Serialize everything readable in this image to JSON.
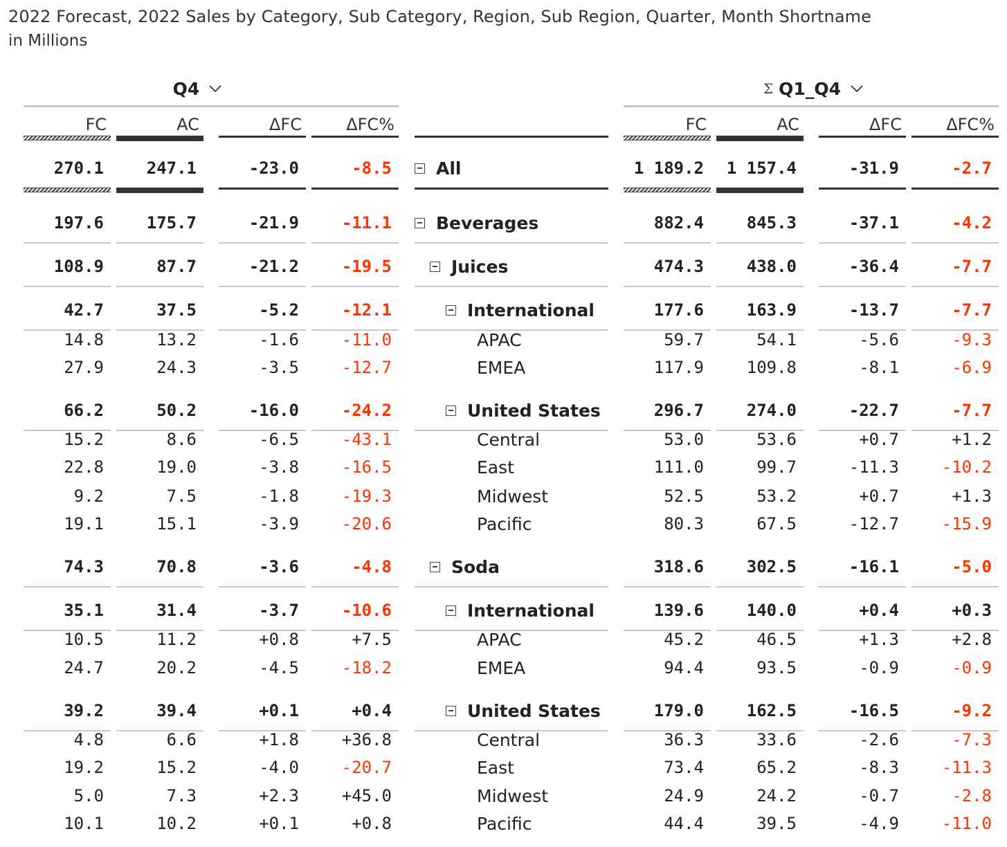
{
  "title": "2022 Forecast, 2022 Sales by Category, Sub Category, Region, Sub Region, Quarter, Month Shortname",
  "subtitle": "in Millions",
  "groups": {
    "left": {
      "label": "Q4",
      "icon": "chevron-down-icon"
    },
    "right": {
      "label": "Q1_Q4",
      "sigma": "Σ",
      "icon": "chevron-down-icon"
    }
  },
  "column_headers": [
    "FC",
    "AC",
    "ΔFC",
    "ΔFC%"
  ],
  "colors": {
    "negative": "#ff3300",
    "text": "#222222",
    "rule": "#c8c8c8",
    "dark_rule": "#333333"
  },
  "rows": [
    {
      "label": "All",
      "level": 0,
      "toggle": "collapse",
      "q4": [
        "270.1",
        "247.1",
        "-23.0",
        "-8.5"
      ],
      "ytd": [
        "1 189.2",
        "1 157.4",
        "-31.9",
        "-2.7"
      ]
    },
    {
      "label": "Beverages",
      "level": 0,
      "toggle": "collapse",
      "q4": [
        "197.6",
        "175.7",
        "-21.9",
        "-11.1"
      ],
      "ytd": [
        "882.4",
        "845.3",
        "-37.1",
        "-4.2"
      ]
    },
    {
      "label": "Juices",
      "level": 1,
      "toggle": "collapse",
      "q4": [
        "108.9",
        "87.7",
        "-21.2",
        "-19.5"
      ],
      "ytd": [
        "474.3",
        "438.0",
        "-36.4",
        "-7.7"
      ]
    },
    {
      "label": "International",
      "level": 2,
      "toggle": "collapse",
      "q4": [
        "42.7",
        "37.5",
        "-5.2",
        "-12.1"
      ],
      "ytd": [
        "177.6",
        "163.9",
        "-13.7",
        "-7.7"
      ]
    },
    {
      "label": "APAC",
      "level": 3,
      "q4": [
        "14.8",
        "13.2",
        "-1.6",
        "-11.0"
      ],
      "ytd": [
        "59.7",
        "54.1",
        "-5.6",
        "-9.3"
      ]
    },
    {
      "label": "EMEA",
      "level": 3,
      "q4": [
        "27.9",
        "24.3",
        "-3.5",
        "-12.7"
      ],
      "ytd": [
        "117.9",
        "109.8",
        "-8.1",
        "-6.9"
      ]
    },
    {
      "label": "United States",
      "level": 2,
      "toggle": "collapse",
      "q4": [
        "66.2",
        "50.2",
        "-16.0",
        "-24.2"
      ],
      "ytd": [
        "296.7",
        "274.0",
        "-22.7",
        "-7.7"
      ]
    },
    {
      "label": "Central",
      "level": 3,
      "q4": [
        "15.2",
        "8.6",
        "-6.5",
        "-43.1"
      ],
      "ytd": [
        "53.0",
        "53.6",
        "+0.7",
        "+1.2"
      ]
    },
    {
      "label": "East",
      "level": 3,
      "q4": [
        "22.8",
        "19.0",
        "-3.8",
        "-16.5"
      ],
      "ytd": [
        "111.0",
        "99.7",
        "-11.3",
        "-10.2"
      ]
    },
    {
      "label": "Midwest",
      "level": 3,
      "q4": [
        "9.2",
        "7.5",
        "-1.8",
        "-19.3"
      ],
      "ytd": [
        "52.5",
        "53.2",
        "+0.7",
        "+1.3"
      ]
    },
    {
      "label": "Pacific",
      "level": 3,
      "q4": [
        "19.1",
        "15.1",
        "-3.9",
        "-20.6"
      ],
      "ytd": [
        "80.3",
        "67.5",
        "-12.7",
        "-15.9"
      ]
    },
    {
      "label": "Soda",
      "level": 1,
      "toggle": "collapse",
      "q4": [
        "74.3",
        "70.8",
        "-3.6",
        "-4.8"
      ],
      "ytd": [
        "318.6",
        "302.5",
        "-16.1",
        "-5.0"
      ]
    },
    {
      "label": "International",
      "level": 2,
      "toggle": "collapse",
      "q4": [
        "35.1",
        "31.4",
        "-3.7",
        "-10.6"
      ],
      "ytd": [
        "139.6",
        "140.0",
        "+0.4",
        "+0.3"
      ]
    },
    {
      "label": "APAC",
      "level": 3,
      "q4": [
        "10.5",
        "11.2",
        "+0.8",
        "+7.5"
      ],
      "ytd": [
        "45.2",
        "46.5",
        "+1.3",
        "+2.8"
      ]
    },
    {
      "label": "EMEA",
      "level": 3,
      "q4": [
        "24.7",
        "20.2",
        "-4.5",
        "-18.2"
      ],
      "ytd": [
        "94.4",
        "93.5",
        "-0.9",
        "-0.9"
      ]
    },
    {
      "label": "United States",
      "level": 2,
      "toggle": "collapse",
      "q4": [
        "39.2",
        "39.4",
        "+0.1",
        "+0.4"
      ],
      "ytd": [
        "179.0",
        "162.5",
        "-16.5",
        "-9.2"
      ]
    },
    {
      "label": "Central",
      "level": 3,
      "q4": [
        "4.8",
        "6.6",
        "+1.8",
        "+36.8"
      ],
      "ytd": [
        "36.3",
        "33.6",
        "-2.6",
        "-7.3"
      ]
    },
    {
      "label": "East",
      "level": 3,
      "q4": [
        "19.2",
        "15.2",
        "-4.0",
        "-20.7"
      ],
      "ytd": [
        "73.4",
        "65.2",
        "-8.3",
        "-11.3"
      ]
    },
    {
      "label": "Midwest",
      "level": 3,
      "q4": [
        "5.0",
        "7.3",
        "+2.3",
        "+45.0"
      ],
      "ytd": [
        "24.9",
        "24.2",
        "-0.7",
        "-2.8"
      ]
    },
    {
      "label": "Pacific",
      "level": 3,
      "q4": [
        "10.1",
        "10.2",
        "+0.1",
        "+0.8"
      ],
      "ytd": [
        "44.4",
        "39.5",
        "-4.9",
        "-11.0"
      ]
    }
  ]
}
